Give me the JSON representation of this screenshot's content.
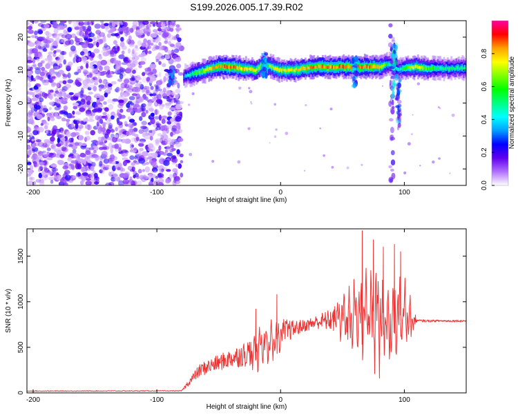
{
  "title": "S199.2026.005.17.39.R02",
  "chart_data": [
    {
      "type": "heatmap",
      "xlabel": "Height of straight line (km)",
      "ylabel": "Frequency (Hz)",
      "xlim": [
        -205,
        150
      ],
      "ylim": [
        -25,
        25
      ],
      "xticks": [
        -200,
        -100,
        0,
        100
      ],
      "yticks": [
        -20,
        -10,
        0,
        10,
        20
      ],
      "colorbar": {
        "label": "Normalized spectral amplitude",
        "range": [
          0.0,
          1.0
        ],
        "ticks": [
          0.0,
          0.2,
          0.4,
          0.6,
          0.8
        ],
        "tick_labels": [
          "0.0",
          "0.2",
          "0.4",
          "0.6",
          "0.8"
        ],
        "colors": [
          "#ffffff",
          "#b070ff",
          "#6000ee",
          "#0000ff",
          "#00a0ff",
          "#00ffff",
          "#00ff80",
          "#00ff00",
          "#80ff00",
          "#ffff00",
          "#ffa000",
          "#ff0000",
          "#ff00a0"
        ]
      },
      "noise_region": {
        "x_range": [
          -205,
          -80
        ],
        "y_range": [
          -25,
          25
        ]
      },
      "ridge": {
        "x": [
          -78,
          -70,
          -60,
          -50,
          -40,
          -30,
          -20,
          -13,
          -5,
          0,
          10,
          20,
          30,
          40,
          50,
          60,
          70,
          80,
          88,
          95,
          100,
          110,
          120,
          130,
          140,
          150
        ],
        "freq": [
          8,
          9,
          10,
          11,
          11,
          10.5,
          10,
          12,
          10.5,
          10,
          10,
          10.5,
          11,
          11,
          11,
          11,
          11,
          11,
          12,
          10,
          10.5,
          11,
          10.5,
          10.5,
          10.5,
          10.5
        ],
        "peak": [
          0.35,
          0.55,
          0.7,
          0.85,
          0.85,
          0.8,
          0.75,
          0.6,
          0.7,
          0.75,
          0.75,
          0.8,
          0.85,
          0.85,
          0.85,
          0.85,
          0.85,
          0.8,
          0.5,
          0.4,
          0.6,
          0.75,
          0.6,
          0.5,
          0.5,
          0.5
        ]
      }
    },
    {
      "type": "line",
      "xlabel": "Height of straight line (km)",
      "ylabel": "SNR (10 * v/v)",
      "xlim": [
        -205,
        150
      ],
      "ylim": [
        0,
        1800
      ],
      "xticks": [
        -200,
        -100,
        0,
        100
      ],
      "yticks": [
        0,
        500,
        1000,
        1500
      ],
      "color": "#ee3333",
      "series": [
        {
          "name": "SNR",
          "x": [
            -205,
            -80,
            -72,
            -65,
            -60,
            -50,
            -40,
            -30,
            -20,
            -10,
            0,
            10,
            20,
            30,
            40,
            50,
            60,
            70,
            80,
            90,
            100,
            106,
            110,
            120,
            130,
            140,
            150
          ],
          "baseline": [
            20,
            22,
            150,
            250,
            280,
            330,
            380,
            420,
            480,
            560,
            650,
            700,
            740,
            780,
            800,
            820,
            830,
            840,
            820,
            800,
            820,
            800,
            790,
            790,
            790,
            790,
            790
          ],
          "amplitude": [
            5,
            5,
            60,
            90,
            100,
            110,
            130,
            170,
            220,
            260,
            220,
            120,
            80,
            100,
            150,
            260,
            400,
            500,
            550,
            520,
            400,
            250,
            20,
            15,
            15,
            15,
            15
          ]
        }
      ],
      "peaks": [
        {
          "x": -20,
          "y": 920
        },
        {
          "x": -3,
          "y": 1080
        },
        {
          "x": 66,
          "y": 1780
        },
        {
          "x": 75,
          "y": 1680
        },
        {
          "x": 83,
          "y": 1600
        },
        {
          "x": 92,
          "y": 1630
        },
        {
          "x": 97,
          "y": 1550
        }
      ]
    }
  ]
}
